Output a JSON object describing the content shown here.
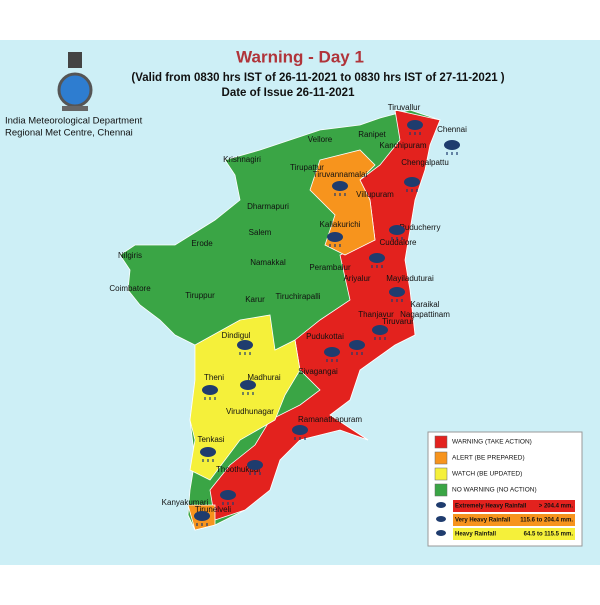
{
  "header": {
    "title": "Warning - Day 1",
    "validity": "(Valid from 0830 hrs IST of 26-11-2021 to 0830 hrs IST of 27-11-2021 )",
    "issue_date": "Date of Issue 26-11-2021"
  },
  "organization": {
    "line1": "India Meteorological Department",
    "line2": "Regional Met Centre, Chennai"
  },
  "warnings": [
    {
      "label": "WARNING (TAKE ACTION)",
      "color": "#e3221e",
      "districts": [
        "Tiruvallur",
        "Chennai",
        "Kanchipuram",
        "Chengalpattu",
        "Villupuram",
        "Puducherry",
        "Cuddalore",
        "Mayiladuturai",
        "Karaikal",
        "Nagapattinam",
        "Thanjavur",
        "Tiruvarur",
        "Pudukottai",
        "Sivagangai",
        "Ramanathapuram",
        "Thoothukudi",
        "Tirunelveli"
      ]
    },
    {
      "label": "ALERT (BE PREPARED)",
      "color": "#f7941d",
      "districts": [
        "Tiruvannamalai",
        "Kallakurichi",
        "Kanyakumari"
      ]
    },
    {
      "label": "WATCH (BE  UPDATED)",
      "color": "#f5f03a",
      "districts": [
        "Dindigul",
        "Theni",
        "Madhurai",
        "Virudhunagar",
        "Tenkasi"
      ]
    },
    {
      "label": "NO WARNING (NO ACTION)",
      "color": "#3aa545",
      "districts": [
        "Krishnagiri",
        "Tirupattur",
        "Vellore",
        "Ranipet",
        "Dharmapuri",
        "Salem",
        "Erode",
        "Nilgiris",
        "Namakkal",
        "Coimbatore",
        "Tiruppur",
        "Karur",
        "Tiruchirapalli",
        "Perambalur",
        "Ariyalur"
      ]
    }
  ],
  "rainfall": [
    {
      "label": "Extremely Heavy Rainfall",
      "range": "> 204.4 mm.",
      "color": "#e3221e"
    },
    {
      "label": "Very Heavy Rainfall",
      "range": "115.6 to 204.4 mm.",
      "color": "#f7941d"
    },
    {
      "label": "Heavy Rainfall",
      "range": "64.5 to 115.5 mm.",
      "color": "#f5f03a"
    }
  ]
}
